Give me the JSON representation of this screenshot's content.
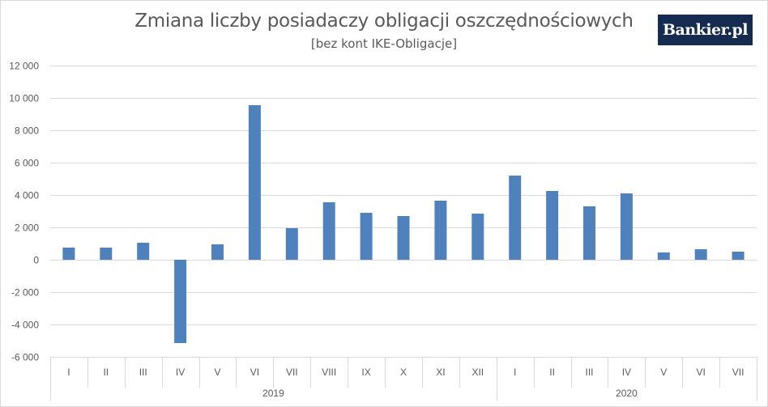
{
  "chart_data": {
    "type": "bar",
    "title": "Zmiana liczby posiadaczy obligacji oszczędnościowych",
    "subtitle": "[bez kont IKE-Obligacje]",
    "xlabel": "",
    "ylabel": "",
    "ylim": [
      -6000,
      12000
    ],
    "yticks": [
      12000,
      10000,
      8000,
      6000,
      4000,
      2000,
      0,
      -2000,
      -4000,
      -6000
    ],
    "ytick_labels": [
      "12 000",
      "10 000",
      "8 000",
      "6 000",
      "4 000",
      "2 000",
      "0",
      "-2 000",
      "-4 000",
      "-6 000"
    ],
    "grid": true,
    "bar_color": "#4f81bd",
    "categories": [
      "I",
      "II",
      "III",
      "IV",
      "V",
      "VI",
      "VII",
      "VIII",
      "IX",
      "X",
      "XI",
      "XII",
      "I",
      "II",
      "III",
      "IV",
      "V",
      "VI",
      "VII"
    ],
    "values": [
      750,
      750,
      1050,
      -5150,
      950,
      9550,
      1950,
      3550,
      2900,
      2700,
      3650,
      2850,
      5200,
      4250,
      3300,
      4100,
      450,
      650,
      500
    ],
    "groups": [
      {
        "label": "2019",
        "count": 12
      },
      {
        "label": "2020",
        "count": 7
      }
    ]
  },
  "logo": {
    "text": "Bankier.pl"
  }
}
